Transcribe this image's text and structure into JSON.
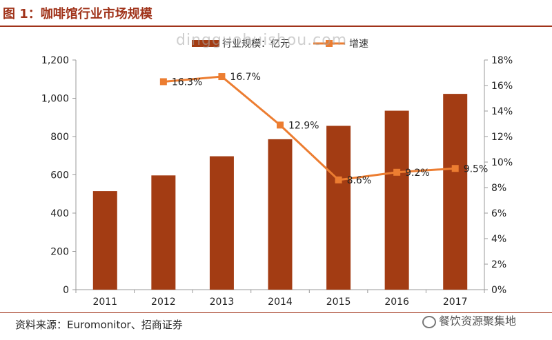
{
  "header": {
    "title": "图 1：咖啡馆行业市场规模"
  },
  "footer": {
    "source": "资料来源：Euromonitor、招商证券",
    "brand": "餐饮资源聚集地"
  },
  "watermark": "dingguohuishou.com",
  "colors": {
    "bar": "#a33c13",
    "line": "#ec7d31",
    "accent": "#a0331a"
  },
  "chart_data": {
    "type": "bar",
    "categories": [
      "2011",
      "2012",
      "2013",
      "2014",
      "2015",
      "2016",
      "2017"
    ],
    "series": [
      {
        "name": "行业规模：亿元",
        "type": "bar",
        "axis": "left",
        "values": [
          515,
          597,
          697,
          786,
          856,
          935,
          1023
        ]
      },
      {
        "name": "增速",
        "type": "line",
        "axis": "right",
        "values": [
          null,
          16.3,
          16.7,
          12.9,
          8.6,
          9.2,
          9.5
        ],
        "labels": [
          "",
          "16.3%",
          "16.7%",
          "12.9%",
          "8.6%",
          "9.2%",
          "9.5%"
        ]
      }
    ],
    "y_left": {
      "min": 0,
      "max": 1200,
      "ticks": [
        "0",
        "200",
        "400",
        "600",
        "800",
        "1,000",
        "1,200"
      ]
    },
    "y_right": {
      "min": 0,
      "max": 18,
      "ticks": [
        "0%",
        "2%",
        "4%",
        "6%",
        "8%",
        "10%",
        "12%",
        "14%",
        "16%",
        "18%"
      ]
    },
    "legend_position": "top",
    "grid": false
  }
}
